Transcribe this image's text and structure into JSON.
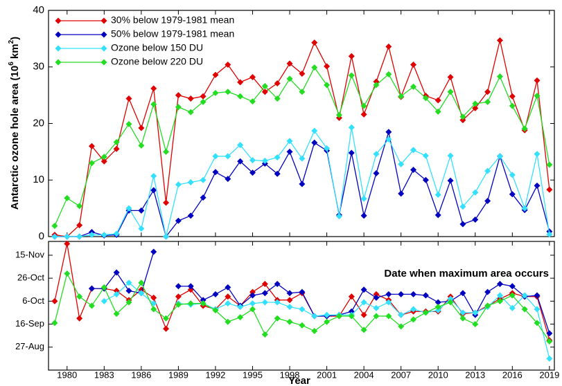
{
  "chart_data": [
    {
      "type": "line",
      "ylabel_parts": [
        "Antarctic ozone hole area (10",
        "6",
        " km",
        "2",
        ")"
      ],
      "x": [
        1979,
        1980,
        1981,
        1982,
        1983,
        1984,
        1985,
        1986,
        1987,
        1988,
        1989,
        1990,
        1991,
        1992,
        1993,
        1994,
        1995,
        1996,
        1997,
        1998,
        1999,
        2000,
        2001,
        2002,
        2003,
        2004,
        2005,
        2006,
        2007,
        2008,
        2009,
        2010,
        2011,
        2012,
        2013,
        2014,
        2015,
        2016,
        2017,
        2018,
        2019
      ],
      "xlim": [
        1978.5,
        2019.4
      ],
      "ylim": [
        0,
        40
      ],
      "yticks": [
        0,
        10,
        20,
        30,
        40
      ],
      "legend": "upper left",
      "series": [
        {
          "name": "30% below 1979-1981 mean",
          "color": "#e00000",
          "values": [
            0.3,
            0,
            2,
            16,
            13.3,
            15.5,
            24.4,
            19.2,
            26.2,
            6,
            25,
            24.4,
            24.8,
            28.6,
            30.4,
            27.3,
            28.2,
            25.6,
            27.1,
            30.6,
            28.8,
            34.3,
            30.1,
            21,
            31.9,
            21.6,
            27.4,
            33.6,
            24.7,
            30.4,
            24.9,
            24.1,
            28.2,
            20.6,
            22.7,
            25.6,
            34.7,
            24.8,
            18.8,
            27.6,
            8.3
          ]
        },
        {
          "name": "50% below 1979-1981 mean",
          "color": "#0000c0",
          "values": [
            0,
            0,
            0,
            0.8,
            0.2,
            0.3,
            4.6,
            4.6,
            8.2,
            0,
            2.8,
            3.7,
            6.9,
            11.4,
            10.2,
            13.3,
            11.3,
            12.9,
            11.1,
            15,
            9.3,
            16.6,
            15.2,
            3.8,
            14.8,
            3.7,
            11.2,
            18.5,
            7.6,
            11.8,
            10,
            3.8,
            9.9,
            2.2,
            3,
            6.3,
            14.2,
            7.5,
            4.7,
            9,
            0.9
          ]
        },
        {
          "name": "Ozone below 150 DU",
          "color": "#33e0ff",
          "values": [
            0,
            0,
            0,
            0.3,
            0.3,
            0.5,
            5,
            1.4,
            10.7,
            0,
            9.2,
            9.6,
            10,
            14.2,
            14.2,
            16.2,
            13.5,
            13.4,
            14,
            16.9,
            13.8,
            18.7,
            15.6,
            3.6,
            19.3,
            6.7,
            14.6,
            17.2,
            12.8,
            15.3,
            14.3,
            7.4,
            14.3,
            5.3,
            7.8,
            11.6,
            14.2,
            10.9,
            5,
            14.6,
            0.4
          ]
        },
        {
          "name": "Ozone below 220 DU",
          "color": "#22dd22",
          "values": [
            1.9,
            6.8,
            5.4,
            13,
            14.1,
            16.7,
            19.9,
            16.1,
            23.4,
            15,
            22.9,
            22,
            23.8,
            25.4,
            25.6,
            24.8,
            23.9,
            26.6,
            24.4,
            27.9,
            25.6,
            29.9,
            26.8,
            21.5,
            28.5,
            23.1,
            26.8,
            28.7,
            24.8,
            26.5,
            24.5,
            22.1,
            25.6,
            21.2,
            23.5,
            23.8,
            28.3,
            23.1,
            19.1,
            24.9,
            12.7
          ]
        }
      ]
    },
    {
      "type": "line",
      "annotation": "Date when maximum area occurs",
      "xlabel": "Year",
      "x": [
        1979,
        1980,
        1981,
        1982,
        1983,
        1984,
        1985,
        1986,
        1987,
        1988,
        1989,
        1990,
        1991,
        1992,
        1993,
        1994,
        1995,
        1996,
        1997,
        1998,
        1999,
        2000,
        2001,
        2002,
        2003,
        2004,
        2005,
        2006,
        2007,
        2008,
        2009,
        2010,
        2011,
        2012,
        2013,
        2014,
        2015,
        2016,
        2017,
        2018,
        2019
      ],
      "xlim": [
        1978.5,
        2019.4
      ],
      "xticks": [
        1980,
        1983,
        1986,
        1989,
        1992,
        1995,
        1998,
        2001,
        2004,
        2007,
        2010,
        2013,
        2016,
        2019
      ],
      "ylim": [
        219,
        331
      ],
      "yticks": [
        {
          "value": 239,
          "label": "27-Aug"
        },
        {
          "value": 259,
          "label": "16-Sep"
        },
        {
          "value": 279,
          "label": "6-Oct"
        },
        {
          "value": 299,
          "label": "26-Oct"
        },
        {
          "value": 319,
          "label": "15-Nov"
        }
      ],
      "series": [
        {
          "color": "#e00000",
          "values": [
            279,
            329,
            264,
            290,
            290,
            288,
            280,
            289,
            282,
            255,
            283,
            289,
            275,
            272,
            283,
            275,
            287,
            294,
            280,
            280,
            286,
            266,
            266,
            266,
            283,
            267,
            285,
            280,
            267,
            270,
            270,
            270,
            283,
            268,
            269,
            275,
            281,
            286,
            283,
            283,
            245
          ]
        },
        {
          "color": "#0000c0",
          "values": [
            null,
            null,
            null,
            290,
            290,
            304,
            288,
            286,
            322,
            null,
            292,
            292,
            280,
            285,
            291,
            275,
            284,
            286,
            294,
            286,
            287,
            266,
            266,
            267,
            270,
            289,
            282,
            285,
            285,
            285,
            284,
            278,
            279,
            286,
            267,
            287,
            294,
            292,
            283,
            284,
            251
          ]
        },
        {
          "color": "#33e0ff",
          "values": [
            null,
            null,
            null,
            null,
            279,
            285,
            295,
            286,
            277,
            null,
            277,
            276,
            277,
            272,
            277,
            274,
            277,
            278,
            278,
            274,
            272,
            266,
            267,
            267,
            267,
            278,
            273,
            278,
            267,
            272,
            269,
            271,
            281,
            269,
            269,
            274,
            284,
            273,
            284,
            272,
            229
          ]
        },
        {
          "color": "#22dd22",
          "values": [
            260,
            303,
            283,
            275,
            291,
            268,
            278,
            295,
            272,
            264,
            276,
            277,
            277,
            271,
            261,
            265,
            272,
            250,
            264,
            261,
            258,
            253,
            261,
            266,
            266,
            254,
            266,
            266,
            257,
            263,
            269,
            274,
            278,
            264,
            259,
            275,
            279,
            284,
            272,
            260,
            244
          ]
        }
      ]
    }
  ]
}
